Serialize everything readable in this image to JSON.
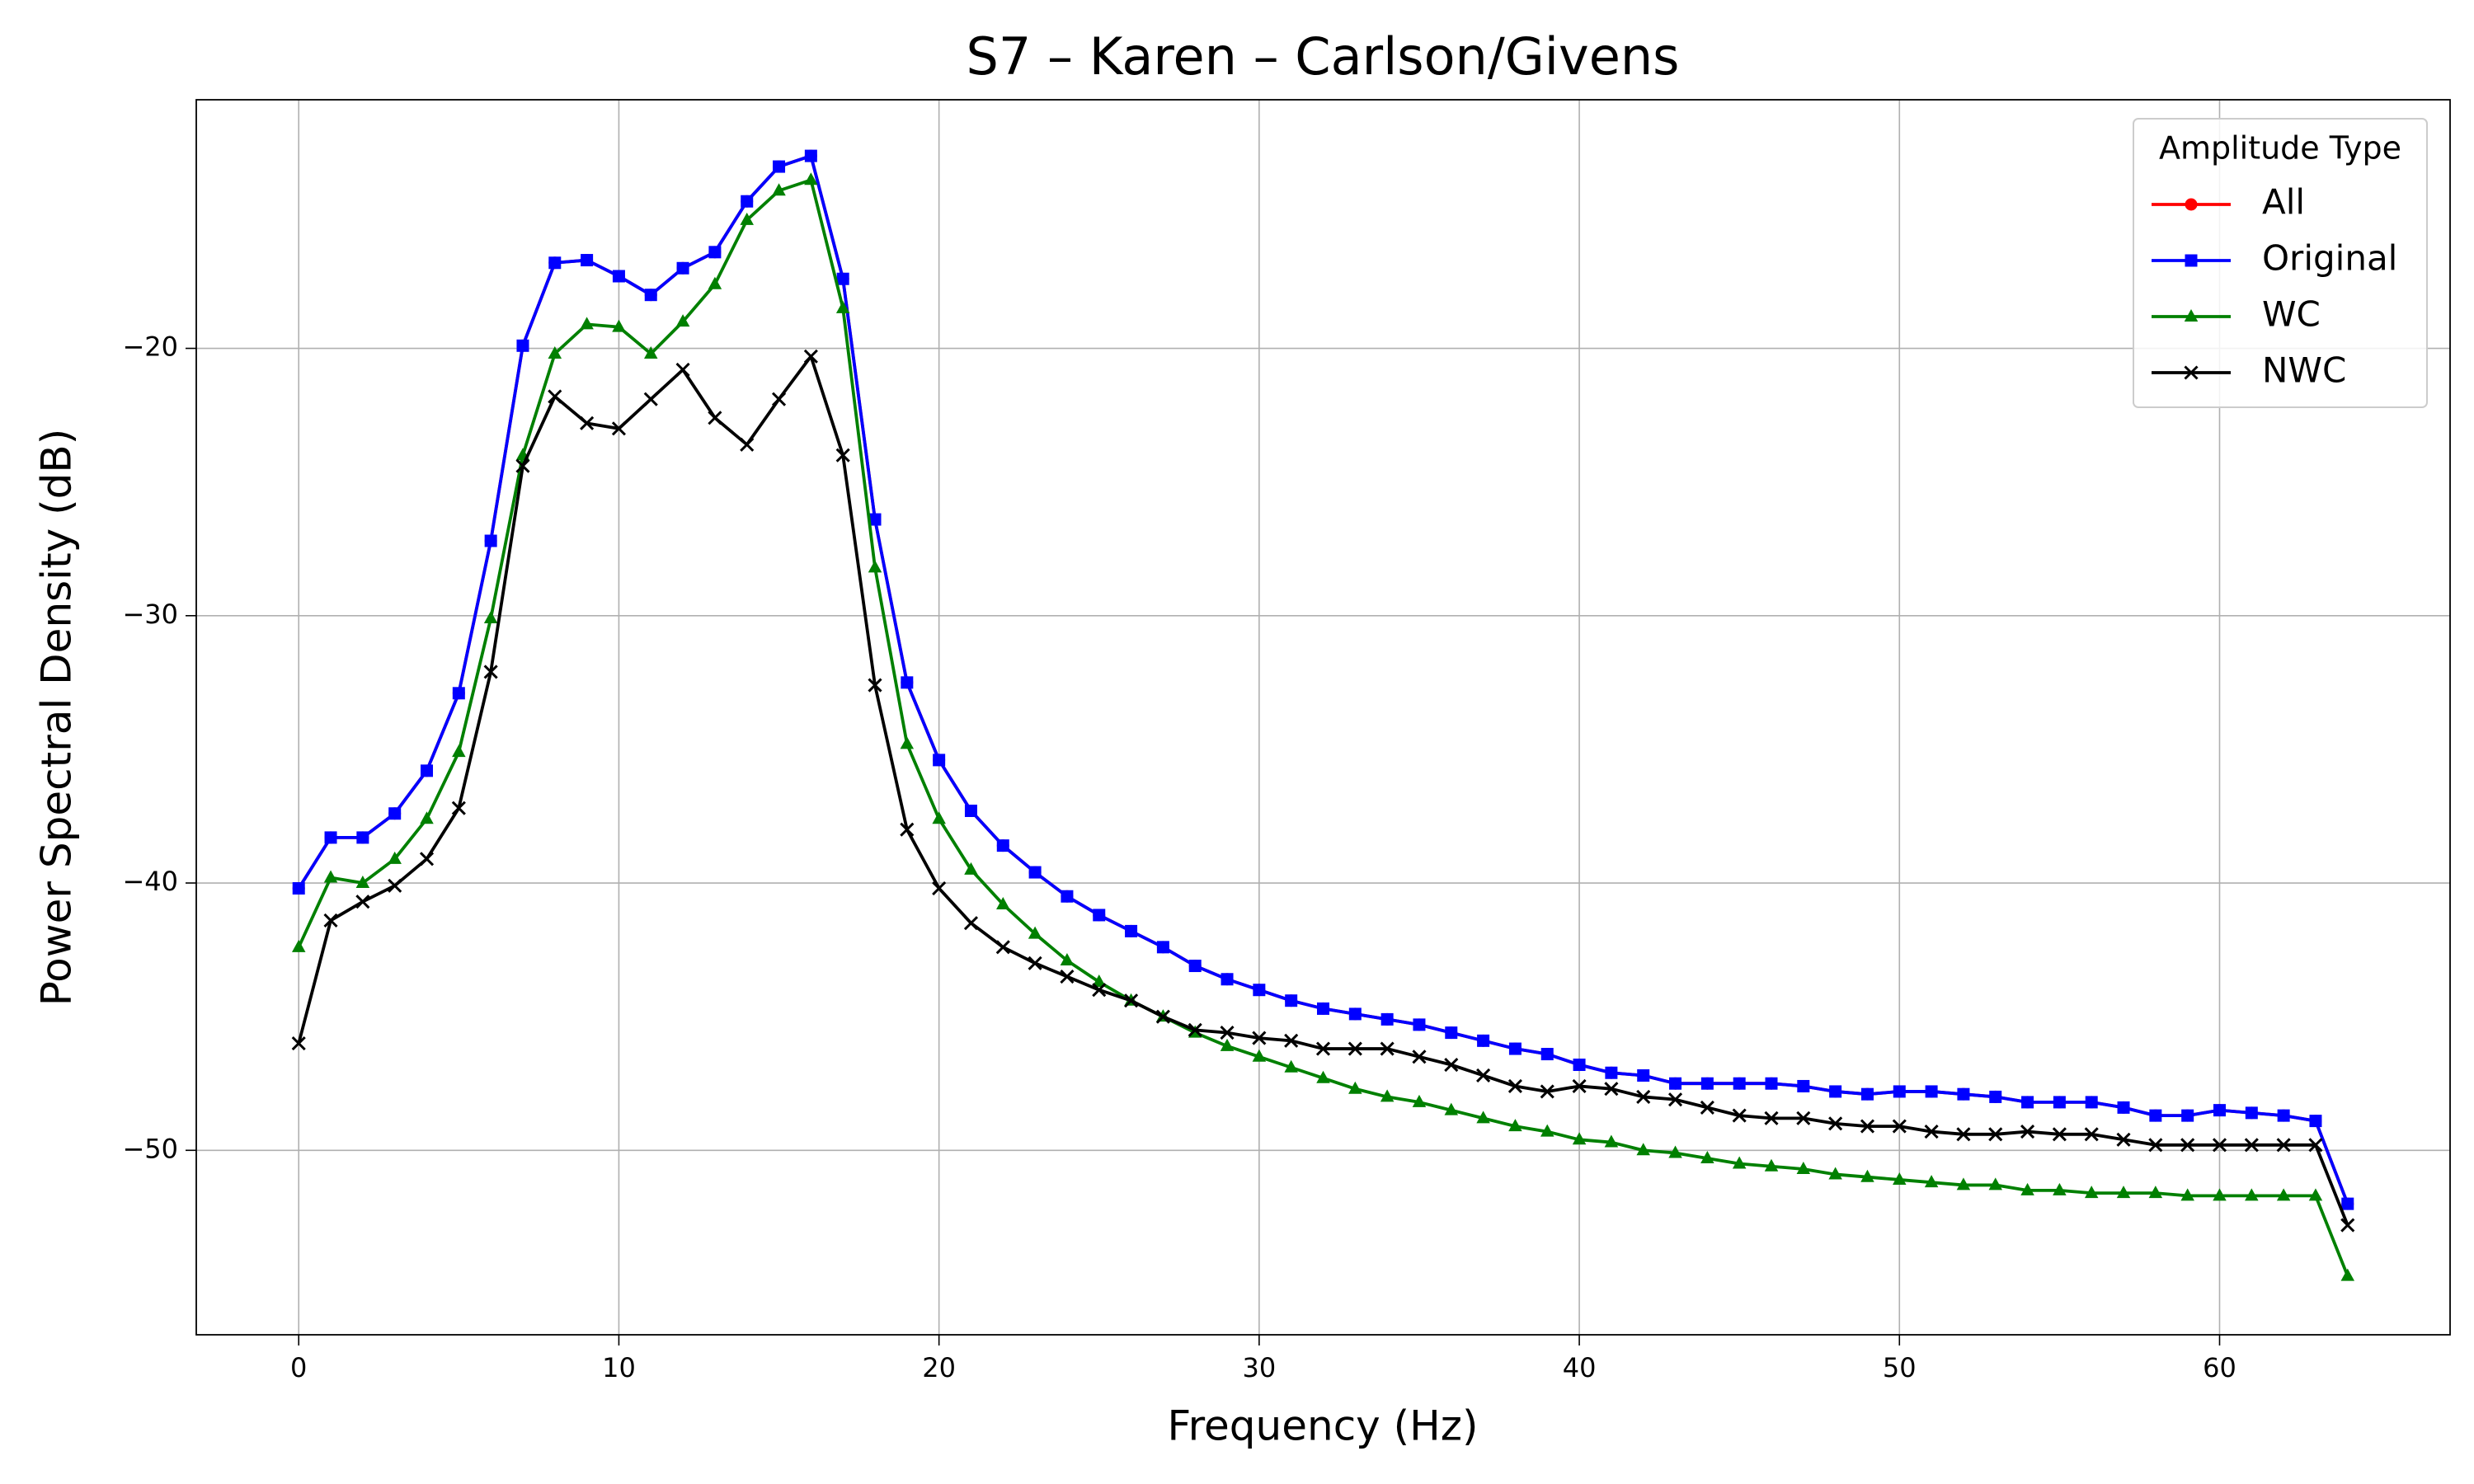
{
  "chart_data": {
    "type": "line",
    "title": "S7 – Karen – Carlson/Givens",
    "x_label": "Frequency (Hz)",
    "y_label": "Power Spectral Density (dB)",
    "legend_title": "Amplitude Type",
    "legend": "upper right",
    "grid": true,
    "xlim": [
      -3.2,
      67.2
    ],
    "ylim": [
      -56.9,
      -10.7
    ],
    "xticks": [
      0,
      10,
      20,
      30,
      40,
      50,
      60
    ],
    "yticks": [
      {
        "value": -50,
        "label": "−50"
      },
      {
        "value": -40,
        "label": "−40"
      },
      {
        "value": -30,
        "label": "−30"
      },
      {
        "value": -20,
        "label": "−20"
      }
    ],
    "x": [
      0,
      1,
      2,
      3,
      4,
      5,
      6,
      7,
      8,
      9,
      10,
      11,
      12,
      13,
      14,
      15,
      16,
      17,
      18,
      19,
      20,
      21,
      22,
      23,
      24,
      25,
      26,
      27,
      28,
      29,
      30,
      31,
      32,
      33,
      34,
      35,
      36,
      37,
      38,
      39,
      40,
      41,
      42,
      43,
      44,
      45,
      46,
      47,
      48,
      49,
      50,
      51,
      52,
      53,
      54,
      55,
      56,
      57,
      58,
      59,
      60,
      61,
      62,
      63,
      64
    ],
    "series": [
      {
        "name": "All",
        "color": "#ff0000",
        "marker": "circle",
        "values": [
          -40.2,
          -38.3,
          -38.3,
          -37.4,
          -35.8,
          -32.9,
          -27.2,
          -19.9,
          -16.8,
          -16.7,
          -17.3,
          -18.0,
          -17.0,
          -16.4,
          -14.5,
          -13.2,
          -12.8,
          -17.4,
          -26.4,
          -32.5,
          -35.4,
          -37.3,
          -38.6,
          -39.6,
          -40.5,
          -41.2,
          -41.8,
          -42.4,
          -43.1,
          -43.6,
          -44.0,
          -44.4,
          -44.7,
          -44.9,
          -45.1,
          -45.3,
          -45.6,
          -45.9,
          -46.2,
          -46.4,
          -46.8,
          -47.1,
          -47.2,
          -47.5,
          -47.5,
          -47.5,
          -47.5,
          -47.6,
          -47.8,
          -47.9,
          -47.8,
          -47.8,
          -47.9,
          -48.0,
          -48.2,
          -48.2,
          -48.2,
          -48.4,
          -48.7,
          -48.7,
          -48.5,
          -48.6,
          -48.7,
          -48.9,
          -52.0
        ]
      },
      {
        "name": "Original",
        "color": "#0000ff",
        "marker": "square",
        "values": [
          -40.2,
          -38.3,
          -38.3,
          -37.4,
          -35.8,
          -32.9,
          -27.2,
          -19.9,
          -16.8,
          -16.7,
          -17.3,
          -18.0,
          -17.0,
          -16.4,
          -14.5,
          -13.2,
          -12.8,
          -17.4,
          -26.4,
          -32.5,
          -35.4,
          -37.3,
          -38.6,
          -39.6,
          -40.5,
          -41.2,
          -41.8,
          -42.4,
          -43.1,
          -43.6,
          -44.0,
          -44.4,
          -44.7,
          -44.9,
          -45.1,
          -45.3,
          -45.6,
          -45.9,
          -46.2,
          -46.4,
          -46.8,
          -47.1,
          -47.2,
          -47.5,
          -47.5,
          -47.5,
          -47.5,
          -47.6,
          -47.8,
          -47.9,
          -47.8,
          -47.8,
          -47.9,
          -48.0,
          -48.2,
          -48.2,
          -48.2,
          -48.4,
          -48.7,
          -48.7,
          -48.5,
          -48.6,
          -48.7,
          -48.9,
          -52.0
        ]
      },
      {
        "name": "WC",
        "color": "#008000",
        "marker": "triangle",
        "values": [
          -42.4,
          -39.8,
          -40.0,
          -39.1,
          -37.6,
          -35.1,
          -30.1,
          -24.0,
          -20.2,
          -19.1,
          -19.2,
          -20.2,
          -19.0,
          -17.6,
          -15.2,
          -14.1,
          -13.7,
          -18.5,
          -28.2,
          -34.8,
          -37.6,
          -39.5,
          -40.8,
          -41.9,
          -42.9,
          -43.7,
          -44.4,
          -45.0,
          -45.6,
          -46.1,
          -46.5,
          -46.9,
          -47.3,
          -47.7,
          -48.0,
          -48.2,
          -48.5,
          -48.8,
          -49.1,
          -49.3,
          -49.6,
          -49.7,
          -50.0,
          -50.1,
          -50.3,
          -50.5,
          -50.6,
          -50.7,
          -50.9,
          -51.0,
          -51.1,
          -51.2,
          -51.3,
          -51.3,
          -51.5,
          -51.5,
          -51.6,
          -51.6,
          -51.6,
          -51.7,
          -51.7,
          -51.7,
          -51.7,
          -51.7,
          -54.7
        ]
      },
      {
        "name": "NWC",
        "color": "#000000",
        "marker": "x",
        "values": [
          -46.0,
          -41.4,
          -40.7,
          -40.1,
          -39.1,
          -37.2,
          -32.1,
          -24.4,
          -21.8,
          -22.8,
          -23.0,
          -21.9,
          -20.8,
          -22.6,
          -23.6,
          -21.9,
          -20.3,
          -24.0,
          -32.6,
          -38.0,
          -40.2,
          -41.5,
          -42.4,
          -43.0,
          -43.5,
          -44.0,
          -44.4,
          -45.0,
          -45.5,
          -45.6,
          -45.8,
          -45.9,
          -46.2,
          -46.2,
          -46.2,
          -46.5,
          -46.8,
          -47.2,
          -47.6,
          -47.8,
          -47.6,
          -47.7,
          -48.0,
          -48.1,
          -48.4,
          -48.7,
          -48.8,
          -48.8,
          -49.0,
          -49.1,
          -49.1,
          -49.3,
          -49.4,
          -49.4,
          -49.3,
          -49.4,
          -49.4,
          -49.6,
          -49.8,
          -49.8,
          -49.8,
          -49.8,
          -49.8,
          -49.8,
          -52.8
        ]
      }
    ]
  }
}
